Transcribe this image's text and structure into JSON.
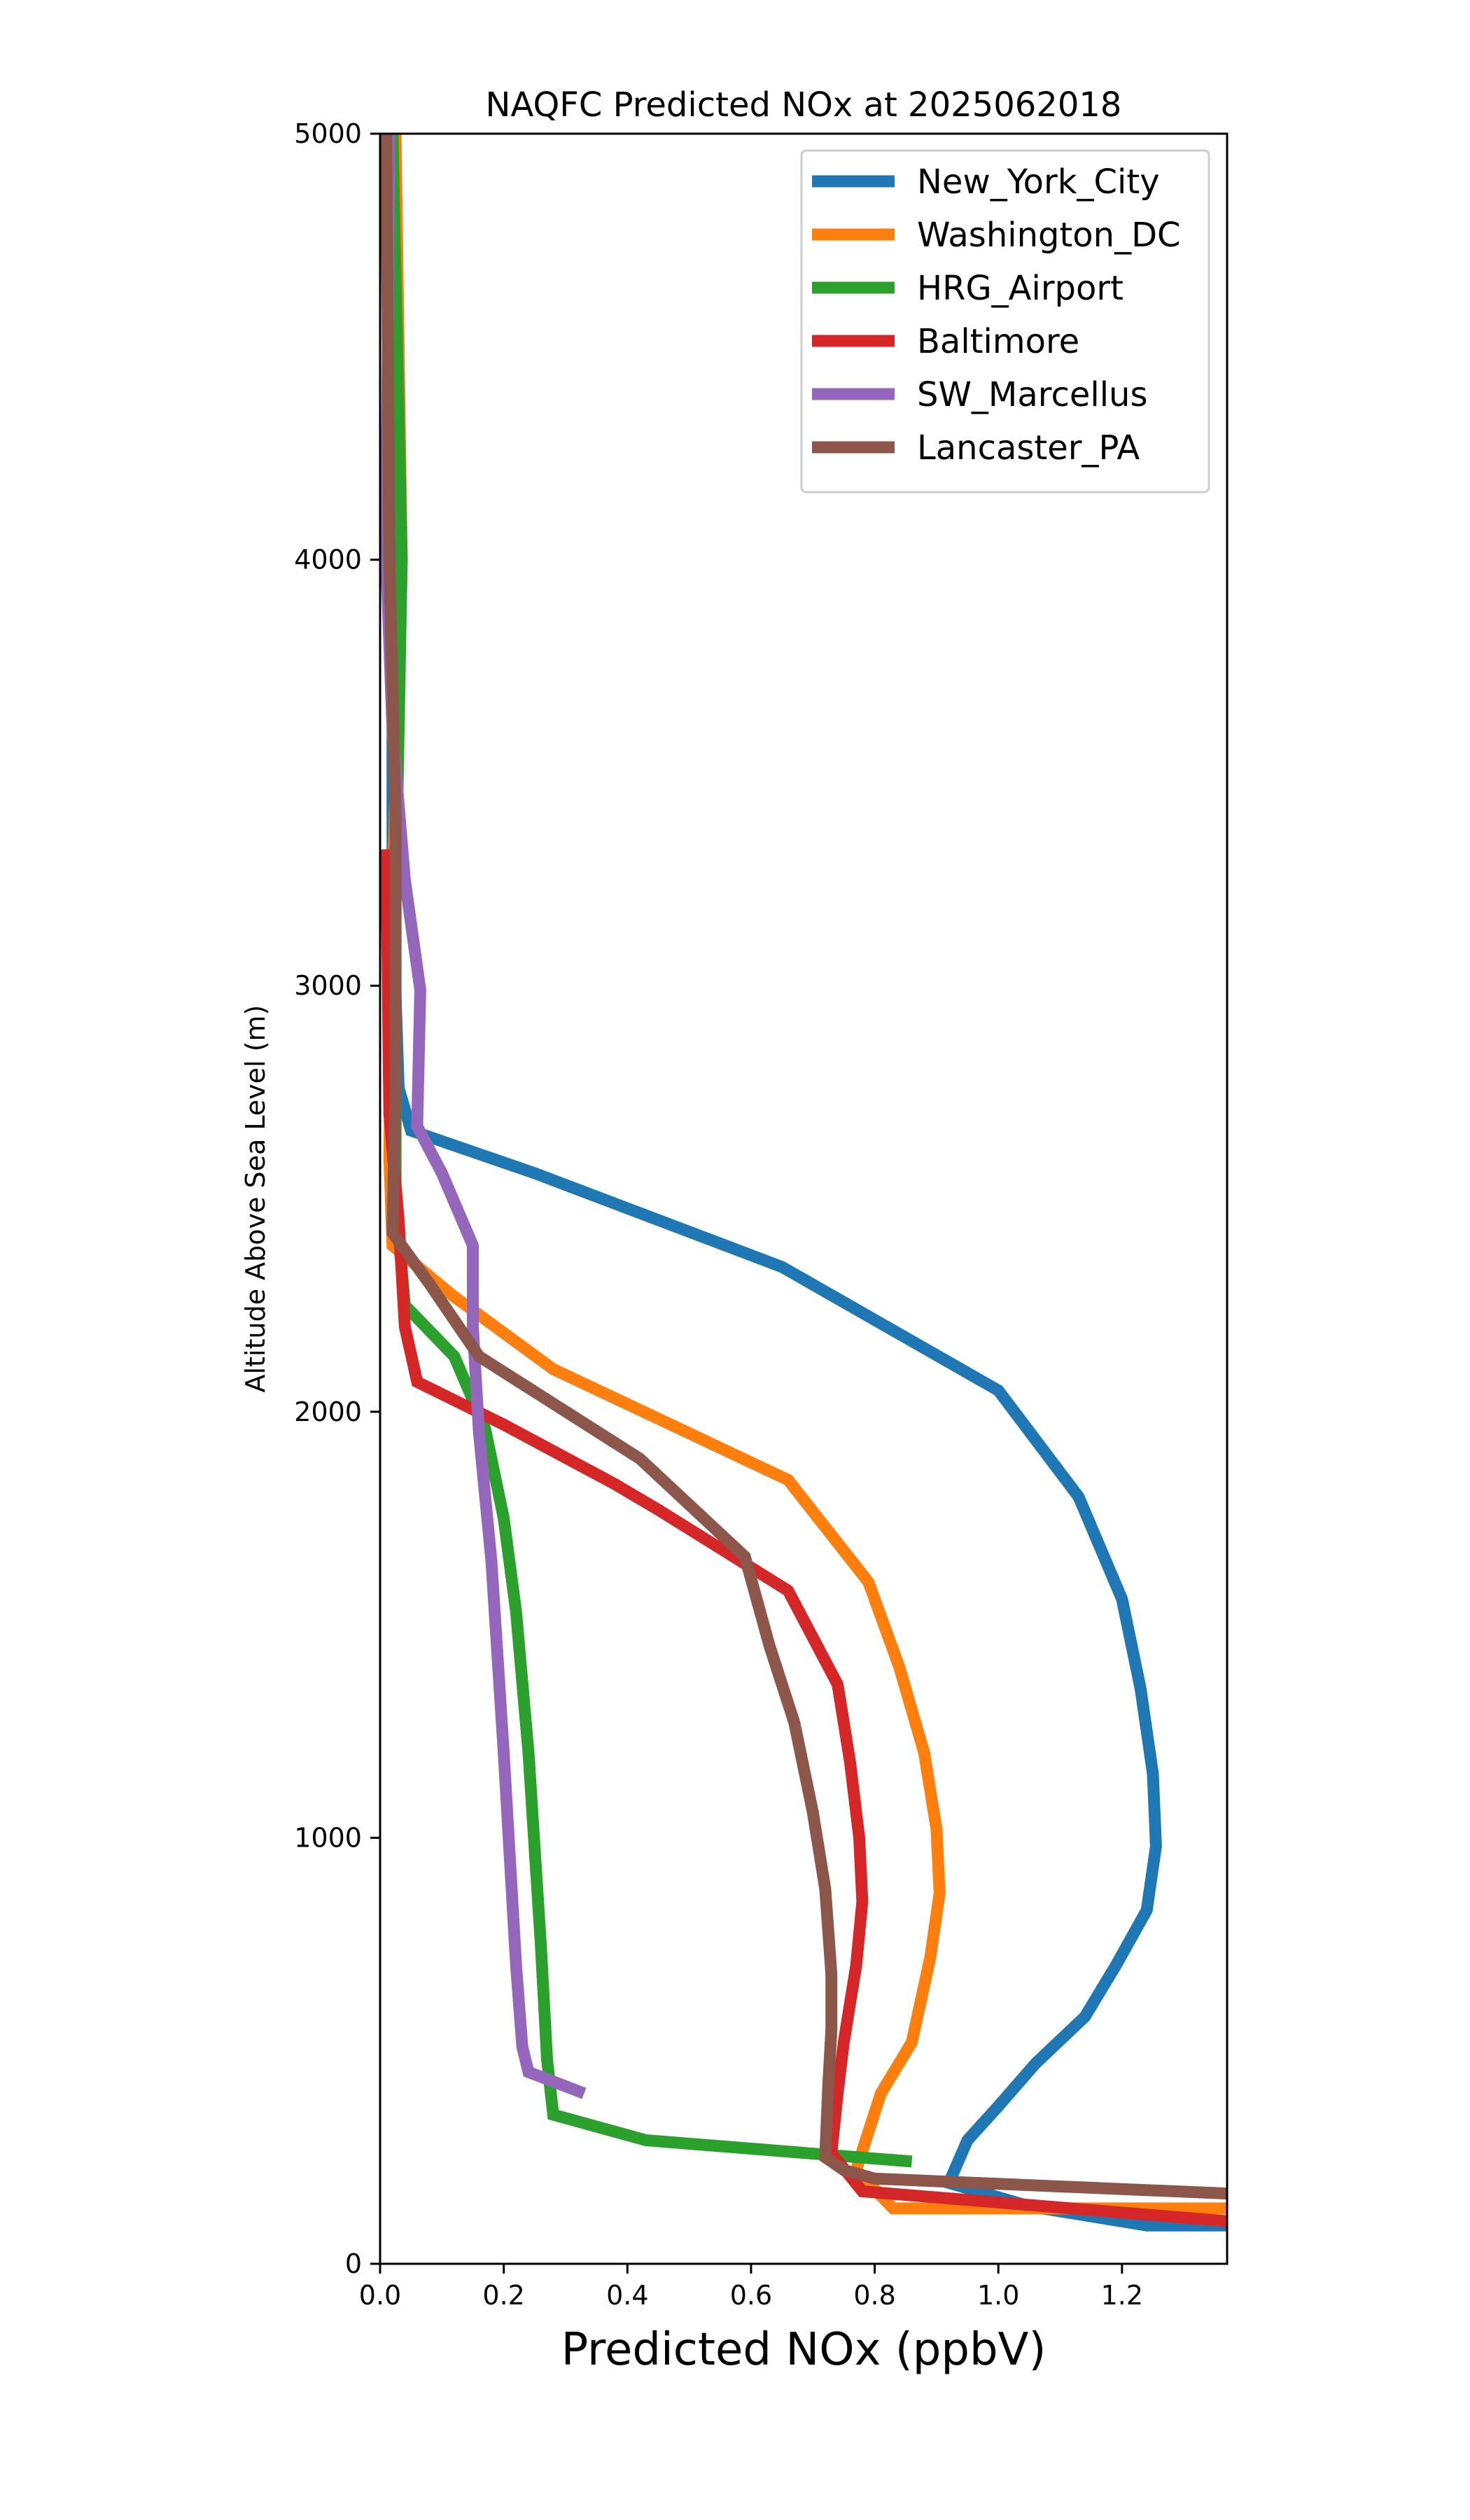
{
  "chart_data": {
    "type": "line",
    "title": "NAQFC Predicted NOx at 2025062018",
    "xlabel": "Predicted NOx (ppbV)",
    "ylabel": "Altitude Above Sea Level (m)",
    "xlim": [
      0,
      1.37
    ],
    "ylim": [
      0,
      5000
    ],
    "xticks": [
      0.0,
      0.2,
      0.4,
      0.6,
      0.8,
      1.0,
      1.2
    ],
    "xtick_labels": [
      "0.0",
      "0.2",
      "0.4",
      "0.6",
      "0.8",
      "1.0",
      "1.2"
    ],
    "yticks": [
      0,
      1000,
      2000,
      3000,
      4000,
      5000
    ],
    "ytick_labels": [
      "0",
      "1000",
      "2000",
      "3000",
      "4000",
      "5000"
    ],
    "grid": false,
    "legend_position": "upper right",
    "series": [
      {
        "name": "New_York_City",
        "color": "#1f77b4",
        "points": [
          [
            1.37,
            90
          ],
          [
            1.24,
            90
          ],
          [
            1.05,
            135
          ],
          [
            0.92,
            190
          ],
          [
            0.95,
            290
          ],
          [
            1.0,
            370
          ],
          [
            1.06,
            470
          ],
          [
            1.14,
            580
          ],
          [
            1.19,
            700
          ],
          [
            1.24,
            830
          ],
          [
            1.255,
            980
          ],
          [
            1.25,
            1150
          ],
          [
            1.23,
            1350
          ],
          [
            1.2,
            1560
          ],
          [
            1.13,
            1800
          ],
          [
            1.0,
            2050
          ],
          [
            0.65,
            2340
          ],
          [
            0.45,
            2450
          ],
          [
            0.25,
            2560
          ],
          [
            0.05,
            2660
          ],
          [
            0.03,
            2760
          ],
          [
            0.02,
            3200
          ],
          [
            0.02,
            4000
          ],
          [
            0.015,
            5000
          ]
        ]
      },
      {
        "name": "Washington_DC",
        "color": "#ff7f0e",
        "points": [
          [
            1.37,
            130
          ],
          [
            0.83,
            130
          ],
          [
            0.77,
            220
          ],
          [
            0.81,
            400
          ],
          [
            0.86,
            520
          ],
          [
            0.89,
            720
          ],
          [
            0.905,
            870
          ],
          [
            0.9,
            1020
          ],
          [
            0.88,
            1200
          ],
          [
            0.84,
            1400
          ],
          [
            0.79,
            1600
          ],
          [
            0.66,
            1840
          ],
          [
            0.28,
            2100
          ],
          [
            0.12,
            2270
          ],
          [
            0.02,
            2390
          ],
          [
            0.015,
            2600
          ],
          [
            0.02,
            3200
          ],
          [
            0.035,
            4000
          ],
          [
            0.025,
            5000
          ]
        ]
      },
      {
        "name": "HRG_Airport",
        "color": "#2ca02c",
        "points": [
          [
            0.86,
            240
          ],
          [
            0.43,
            290
          ],
          [
            0.28,
            350
          ],
          [
            0.27,
            480
          ],
          [
            0.26,
            750
          ],
          [
            0.24,
            1200
          ],
          [
            0.22,
            1530
          ],
          [
            0.2,
            1750
          ],
          [
            0.17,
            1960
          ],
          [
            0.12,
            2130
          ],
          [
            0.04,
            2250
          ],
          [
            0.025,
            2500
          ],
          [
            0.025,
            3200
          ],
          [
            0.035,
            4000
          ],
          [
            0.02,
            5000
          ]
        ]
      },
      {
        "name": "Baltimore",
        "color": "#d62728",
        "points": [
          [
            1.37,
            100
          ],
          [
            0.78,
            170
          ],
          [
            0.73,
            260
          ],
          [
            0.74,
            400
          ],
          [
            0.75,
            520
          ],
          [
            0.77,
            700
          ],
          [
            0.78,
            850
          ],
          [
            0.775,
            1000
          ],
          [
            0.76,
            1180
          ],
          [
            0.74,
            1360
          ],
          [
            0.66,
            1580
          ],
          [
            0.45,
            1770
          ],
          [
            0.38,
            1830
          ],
          [
            0.2,
            1970
          ],
          [
            0.06,
            2070
          ],
          [
            0.04,
            2200
          ],
          [
            0.03,
            2450
          ],
          [
            0.015,
            2700
          ],
          [
            0.01,
            3320
          ]
        ]
      },
      {
        "name": "SW_Marcellus",
        "color": "#9467bd",
        "points": [
          [
            0.33,
            400
          ],
          [
            0.24,
            450
          ],
          [
            0.23,
            510
          ],
          [
            0.22,
            700
          ],
          [
            0.2,
            1200
          ],
          [
            0.18,
            1650
          ],
          [
            0.16,
            1950
          ],
          [
            0.15,
            2200
          ],
          [
            0.15,
            2390
          ],
          [
            0.1,
            2560
          ],
          [
            0.06,
            2670
          ],
          [
            0.065,
            2990
          ],
          [
            0.04,
            3250
          ],
          [
            0.02,
            3600
          ],
          [
            0.01,
            4000
          ],
          [
            0.015,
            5000
          ]
        ]
      },
      {
        "name": "Lancaster_PA",
        "color": "#8c564b",
        "points": [
          [
            1.37,
            165
          ],
          [
            0.8,
            200
          ],
          [
            0.75,
            220
          ],
          [
            0.72,
            250
          ],
          [
            0.725,
            420
          ],
          [
            0.73,
            550
          ],
          [
            0.73,
            680
          ],
          [
            0.72,
            880
          ],
          [
            0.7,
            1060
          ],
          [
            0.67,
            1270
          ],
          [
            0.63,
            1450
          ],
          [
            0.59,
            1660
          ],
          [
            0.42,
            1890
          ],
          [
            0.16,
            2130
          ],
          [
            0.08,
            2300
          ],
          [
            0.02,
            2420
          ],
          [
            0.025,
            2750
          ],
          [
            0.025,
            3400
          ],
          [
            0.015,
            4000
          ],
          [
            0.01,
            5000
          ]
        ]
      }
    ]
  }
}
